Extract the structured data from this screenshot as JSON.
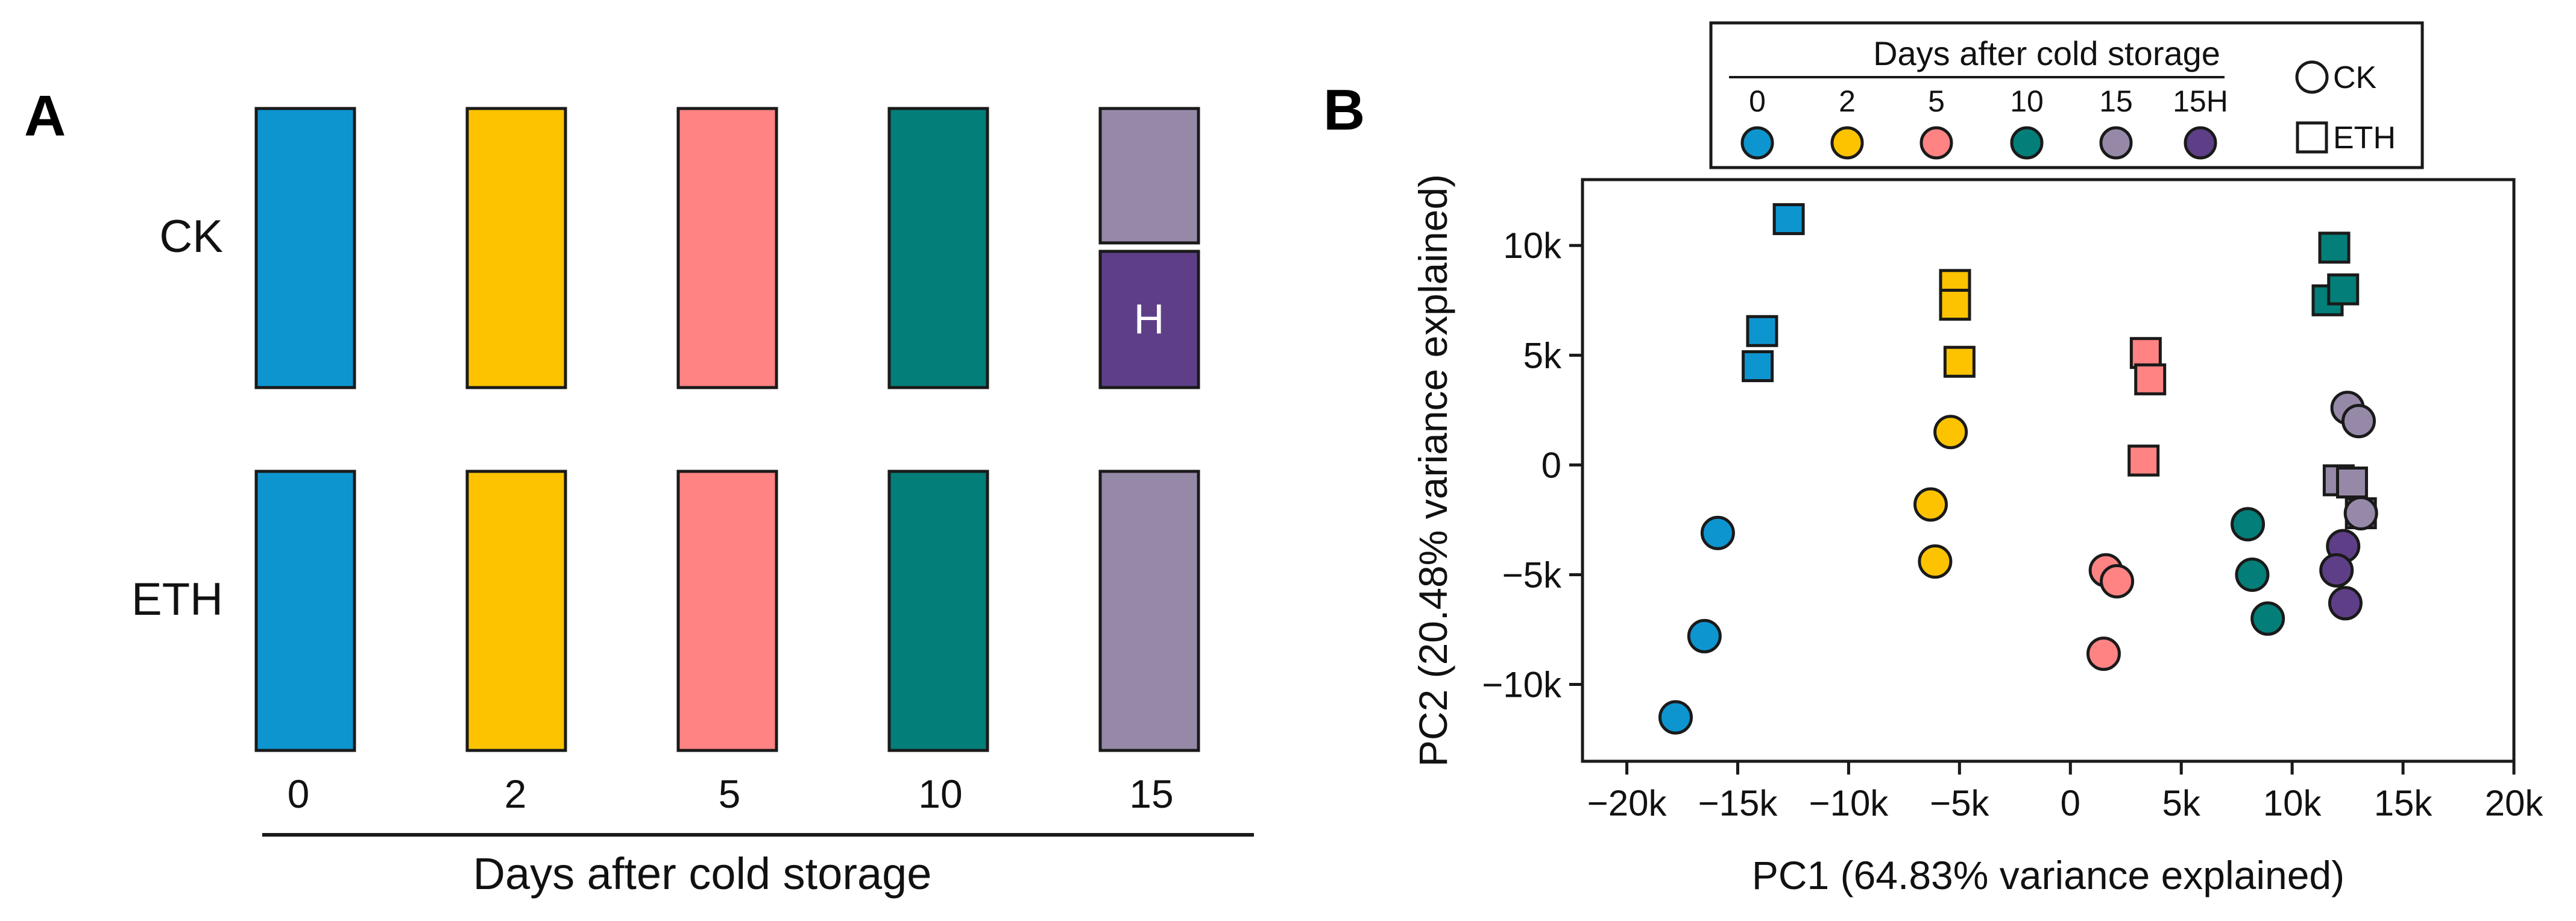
{
  "colors": {
    "day0": "#0D95D0",
    "day2": "#FDC300",
    "day5": "#FF8383",
    "day10": "#047E78",
    "day15": "#9689A8",
    "day15H": "#5E3F87",
    "stroke": "#1a1a1a",
    "background": "#ffffff"
  },
  "panel_a": {
    "letter": "A",
    "rows": [
      "CK",
      "ETH"
    ],
    "days": [
      "0",
      "2",
      "5",
      "10",
      "15"
    ],
    "split_label": "H",
    "xlabel": "Days after cold storage"
  },
  "panel_b": {
    "letter": "B",
    "legend": {
      "title": "Days after cold storage",
      "days": [
        "0",
        "2",
        "5",
        "10",
        "15",
        "15H"
      ],
      "shapes": [
        {
          "label": "CK",
          "shape": "circle"
        },
        {
          "label": "ETH",
          "shape": "square"
        }
      ]
    }
  },
  "chart_data": {
    "type": "scatter",
    "title": "",
    "xlabel": "PC1 (64.83% variance explained)",
    "ylabel": "PC2 (20.48% variance explained)",
    "xlim": [
      -22000,
      20000
    ],
    "ylim": [
      -13500,
      13000
    ],
    "x_ticks": [
      -20000,
      -15000,
      -10000,
      -5000,
      0,
      5000,
      10000,
      15000,
      20000
    ],
    "x_tick_labels": [
      "−20k",
      "−15k",
      "−10k",
      "−5k",
      "0",
      "5k",
      "10k",
      "15k",
      "20k"
    ],
    "y_ticks": [
      -10000,
      -5000,
      0,
      5000,
      10000
    ],
    "y_tick_labels": [
      "−10k",
      "−5k",
      "0",
      "5k",
      "10k"
    ],
    "series": [
      {
        "name": "0 CK",
        "day": "0",
        "color_key": "day0",
        "shape": "circle",
        "points": [
          [
            -17800,
            -11500
          ],
          [
            -16500,
            -7800
          ],
          [
            -15900,
            -3100
          ]
        ]
      },
      {
        "name": "0 ETH",
        "day": "0",
        "color_key": "day0",
        "shape": "square",
        "points": [
          [
            -14100,
            4500
          ],
          [
            -13900,
            6100
          ],
          [
            -12700,
            11200
          ]
        ]
      },
      {
        "name": "2 CK",
        "day": "2",
        "color_key": "day2",
        "shape": "circle",
        "points": [
          [
            -6300,
            -1800
          ],
          [
            -6100,
            -4400
          ],
          [
            -5400,
            1500
          ]
        ]
      },
      {
        "name": "2 ETH",
        "day": "2",
        "color_key": "day2",
        "shape": "square",
        "points": [
          [
            -5200,
            8200
          ],
          [
            -5200,
            7300
          ],
          [
            -5000,
            4700
          ]
        ]
      },
      {
        "name": "5 CK",
        "day": "5",
        "color_key": "day5",
        "shape": "circle",
        "points": [
          [
            1600,
            -4800
          ],
          [
            2100,
            -5300
          ],
          [
            1500,
            -8600
          ]
        ]
      },
      {
        "name": "5 ETH",
        "day": "5",
        "color_key": "day5",
        "shape": "square",
        "points": [
          [
            3400,
            5100
          ],
          [
            3600,
            3900
          ],
          [
            3300,
            200
          ]
        ]
      },
      {
        "name": "10 CK",
        "day": "10",
        "color_key": "day10",
        "shape": "circle",
        "points": [
          [
            8000,
            -2700
          ],
          [
            8200,
            -5000
          ],
          [
            8900,
            -7000
          ]
        ]
      },
      {
        "name": "10 ETH",
        "day": "10",
        "color_key": "day10",
        "shape": "square",
        "points": [
          [
            11600,
            7500
          ],
          [
            12300,
            8000
          ],
          [
            11900,
            9900
          ]
        ]
      },
      {
        "name": "15 CK",
        "day": "15",
        "color_key": "day15",
        "shape": "circle",
        "points": [
          [
            12500,
            2600
          ],
          [
            13000,
            2000
          ],
          [
            13100,
            -2200
          ]
        ]
      },
      {
        "name": "15 ETH",
        "day": "15",
        "color_key": "day15",
        "shape": "square",
        "points": [
          [
            12100,
            -700
          ],
          [
            12700,
            -800
          ],
          [
            13100,
            -2200
          ]
        ]
      },
      {
        "name": "15H CK",
        "day": "15H",
        "color_key": "day15H",
        "shape": "circle",
        "points": [
          [
            12300,
            -3700
          ],
          [
            12000,
            -4800
          ],
          [
            12400,
            -6300
          ]
        ]
      }
    ]
  }
}
